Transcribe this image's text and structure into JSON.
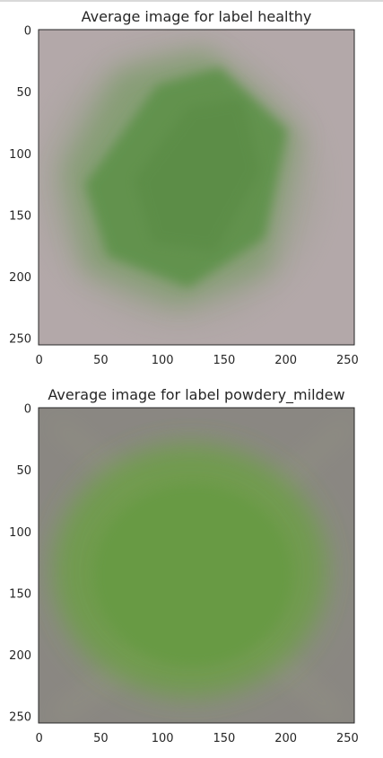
{
  "chart_data": [
    {
      "type": "image",
      "title": "Average image for label healthy",
      "x_ticks": [
        0,
        50,
        100,
        150,
        200,
        250
      ],
      "y_ticks": [
        0,
        50,
        100,
        150,
        200,
        250
      ],
      "xlim": [
        0,
        256
      ],
      "ylim": [
        256,
        0
      ],
      "background_color": "#b3a8a9",
      "leaf_color": "#5b9146"
    },
    {
      "type": "image",
      "title": "Average image for label powdery_mildew",
      "x_ticks": [
        0,
        50,
        100,
        150,
        200,
        250
      ],
      "y_ticks": [
        0,
        50,
        100,
        150,
        200,
        250
      ],
      "xlim": [
        0,
        256
      ],
      "ylim": [
        256,
        0
      ],
      "background_color": "#8a8782",
      "leaf_color": "#6a9f43"
    }
  ]
}
